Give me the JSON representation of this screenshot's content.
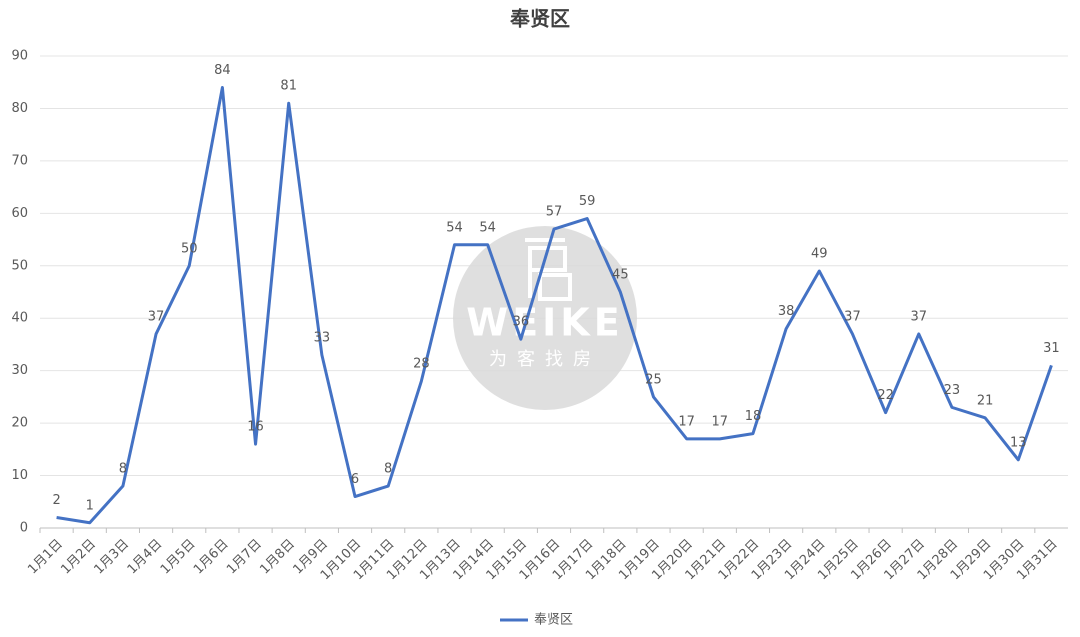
{
  "chart_data": {
    "type": "line",
    "title": "奉贤区",
    "categories": [
      "1月1日",
      "1月2日",
      "1月3日",
      "1月4日",
      "1月5日",
      "1月6日",
      "1月7日",
      "1月8日",
      "1月9日",
      "1月10日",
      "1月11日",
      "1月12日",
      "1月13日",
      "1月14日",
      "1月15日",
      "1月16日",
      "1月17日",
      "1月18日",
      "1月19日",
      "1月20日",
      "1月21日",
      "1月22日",
      "1月23日",
      "1月24日",
      "1月25日",
      "1月26日",
      "1月27日",
      "1月28日",
      "1月29日",
      "1月30日",
      "1月31日"
    ],
    "series": [
      {
        "name": "奉贤区",
        "color": "#4472c4",
        "values": [
          2,
          1,
          8,
          37,
          50,
          84,
          16,
          81,
          33,
          6,
          8,
          28,
          54,
          54,
          36,
          57,
          59,
          45,
          25,
          17,
          17,
          18,
          38,
          49,
          37,
          22,
          37,
          23,
          21,
          13,
          31
        ]
      }
    ],
    "ylim": [
      0,
      90
    ],
    "yticks": [
      0,
      10,
      20,
      30,
      40,
      50,
      60,
      70,
      80,
      90
    ],
    "grid": true,
    "legend": "bottom"
  },
  "watermark": {
    "brand": "WEIKE",
    "slogan": "为客找房"
  }
}
